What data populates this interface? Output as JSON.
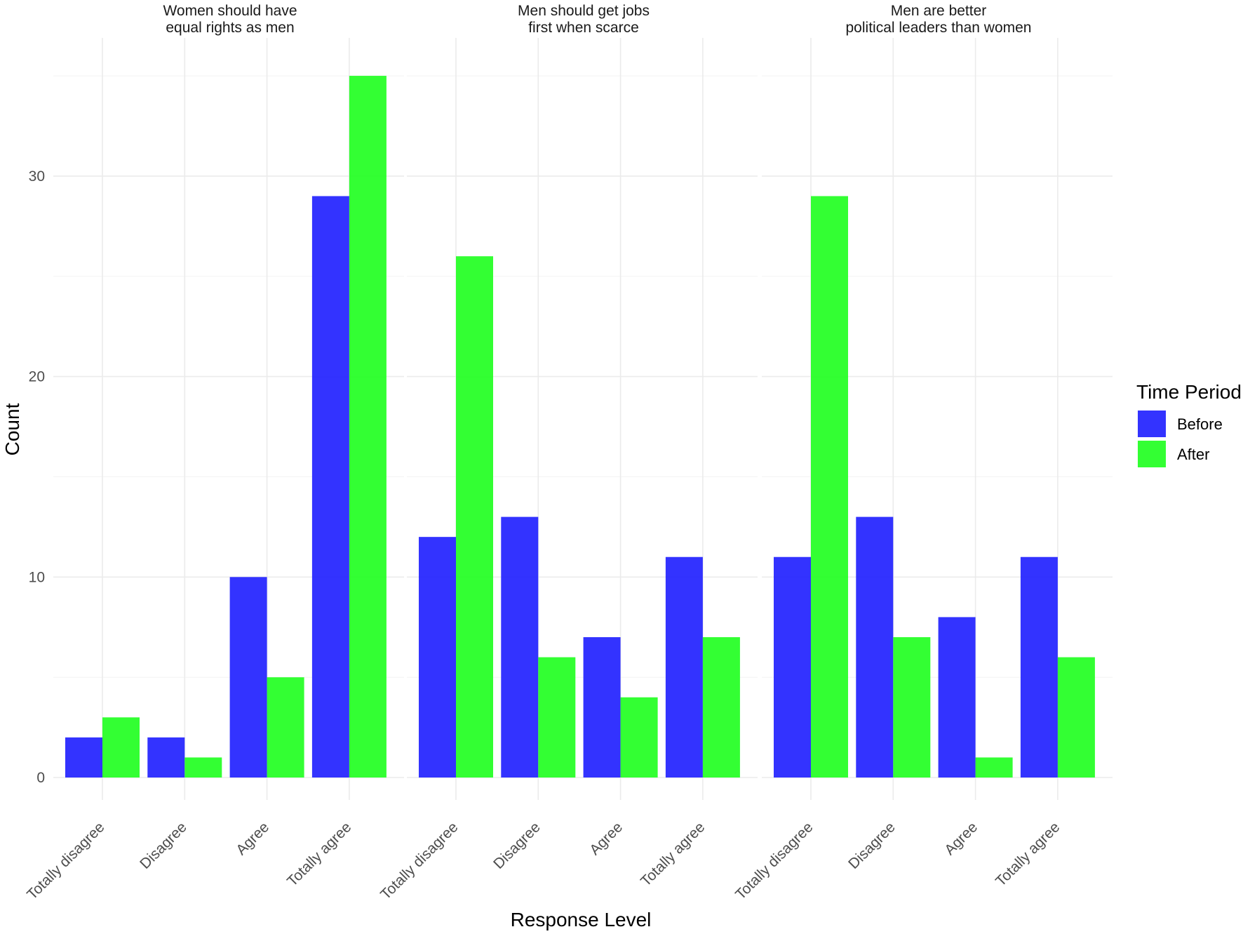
{
  "chart_data": {
    "type": "bar",
    "layout": "faceted-grouped",
    "xlabel": "Response Level",
    "ylabel": "Count",
    "ylim": [
      0,
      36
    ],
    "yticks": [
      0,
      10,
      20,
      30
    ],
    "grid": true,
    "categories": [
      "Totally disagree",
      "Disagree",
      "Agree",
      "Totally agree"
    ],
    "legend": {
      "title": "Time Period",
      "position": "right",
      "entries": [
        {
          "name": "Before",
          "color": "#2222ff"
        },
        {
          "name": "After",
          "color": "#22ff22"
        }
      ]
    },
    "facets": [
      {
        "title_lines": [
          "Women should have",
          "equal rights as men"
        ],
        "series": [
          {
            "name": "Before",
            "values": [
              2,
              2,
              10,
              29
            ]
          },
          {
            "name": "After",
            "values": [
              3,
              1,
              5,
              35
            ]
          }
        ]
      },
      {
        "title_lines": [
          "Men should get jobs",
          "first when scarce"
        ],
        "series": [
          {
            "name": "Before",
            "values": [
              12,
              13,
              7,
              11
            ]
          },
          {
            "name": "After",
            "values": [
              26,
              6,
              4,
              7
            ]
          }
        ]
      },
      {
        "title_lines": [
          "Men are better",
          "political leaders than women"
        ],
        "series": [
          {
            "name": "Before",
            "values": [
              11,
              13,
              8,
              11
            ]
          },
          {
            "name": "After",
            "values": [
              29,
              7,
              1,
              6
            ]
          }
        ]
      }
    ]
  }
}
